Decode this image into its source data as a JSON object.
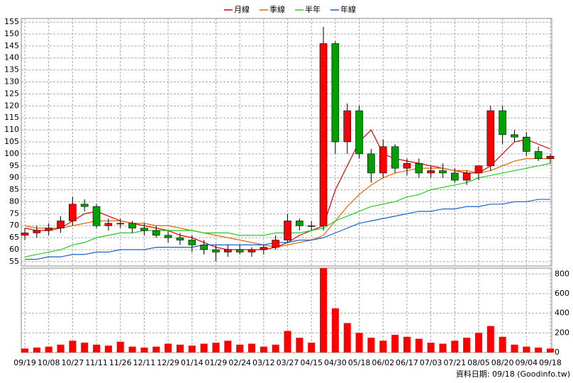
{
  "chart_data": [
    {
      "type": "candlestick",
      "categories": [
        "09/19",
        null,
        "10/08",
        null,
        "10/27",
        null,
        "11/11",
        null,
        "11/26",
        null,
        "12/11",
        null,
        "12/29",
        null,
        "01/14",
        null,
        "01/29",
        null,
        "02/24",
        null,
        "03/12",
        null,
        "03/27",
        null,
        "04/15",
        null,
        "04/30",
        null,
        "05/18",
        null,
        "06/02",
        null,
        "06/17",
        null,
        "07/03",
        null,
        "07/21",
        null,
        "08/05",
        null,
        "08/20",
        null,
        "09/04",
        null,
        "09/18"
      ],
      "open": [
        66,
        67,
        68,
        69,
        72,
        79,
        78,
        70,
        71,
        71,
        69,
        68,
        66,
        65,
        64,
        62,
        60,
        59,
        60,
        59,
        60,
        61,
        64,
        72,
        70,
        70,
        146,
        105,
        118,
        100,
        92,
        103,
        94,
        96,
        92,
        93,
        92,
        89,
        92,
        95,
        118,
        108,
        107,
        101,
        98
      ],
      "high": [
        69,
        70,
        71,
        74,
        82,
        81,
        79,
        73,
        73,
        72,
        71,
        70,
        68,
        67,
        66,
        64,
        62,
        62,
        62,
        61,
        62,
        66,
        75,
        73,
        72,
        153,
        147,
        121,
        120,
        102,
        106,
        104,
        98,
        98,
        95,
        96,
        94,
        93,
        94,
        120,
        120,
        110,
        109,
        103,
        100
      ],
      "low": [
        64,
        65,
        66,
        67,
        70,
        76,
        69,
        68,
        69,
        67,
        66,
        65,
        63,
        62,
        59,
        58,
        55,
        57,
        58,
        57,
        58,
        60,
        63,
        68,
        68,
        68,
        100,
        100,
        98,
        88,
        90,
        92,
        91,
        90,
        90,
        90,
        88,
        87,
        89,
        93,
        104,
        105,
        99,
        97,
        96
      ],
      "close": [
        67,
        68,
        69,
        72,
        79,
        78,
        70,
        71,
        71,
        69,
        68,
        66,
        65,
        64,
        62,
        60,
        59,
        60,
        59,
        60,
        61,
        64,
        72,
        70,
        70,
        146,
        105,
        118,
        100,
        92,
        103,
        94,
        96,
        92,
        93,
        92,
        89,
        92,
        95,
        118,
        108,
        107,
        101,
        98,
        99
      ],
      "series": [
        {
          "name": "月線",
          "color": "#e00000",
          "values": [
            69,
            68,
            68,
            69,
            72,
            75,
            76,
            74,
            72,
            71,
            70,
            69,
            68,
            66,
            65,
            63,
            61,
            60,
            60,
            60,
            60,
            61,
            63,
            66,
            68,
            70,
            85,
            95,
            105,
            110,
            100,
            98,
            97,
            96,
            95,
            94,
            93,
            92,
            92,
            95,
            100,
            105,
            106,
            104,
            102
          ]
        },
        {
          "name": "季線",
          "color": "#e06a00",
          "values": [
            70,
            69,
            69,
            69,
            70,
            71,
            72,
            72,
            72,
            71,
            71,
            70,
            70,
            69,
            68,
            67,
            66,
            65,
            64,
            63,
            62,
            61,
            62,
            63,
            64,
            66,
            72,
            78,
            83,
            87,
            90,
            92,
            93,
            94,
            94,
            94,
            93,
            93,
            92,
            93,
            95,
            97,
            98,
            98,
            98
          ]
        },
        {
          "name": "半年",
          "color": "#22cc22",
          "values": [
            57,
            58,
            59,
            60,
            62,
            63,
            65,
            66,
            67,
            67,
            68,
            68,
            68,
            68,
            68,
            67,
            67,
            67,
            66,
            66,
            66,
            67,
            67,
            67,
            68,
            69,
            72,
            74,
            76,
            78,
            79,
            80,
            82,
            83,
            85,
            86,
            87,
            88,
            90,
            91,
            92,
            93,
            94,
            95,
            96
          ]
        },
        {
          "name": "年線",
          "color": "#1a5fd0",
          "values": [
            56,
            56,
            57,
            57,
            58,
            58,
            59,
            59,
            60,
            60,
            60,
            61,
            61,
            61,
            61,
            62,
            62,
            62,
            62,
            62,
            62,
            63,
            63,
            64,
            64,
            65,
            67,
            69,
            71,
            72,
            73,
            74,
            75,
            76,
            76,
            77,
            77,
            78,
            78,
            79,
            79,
            80,
            80,
            81,
            81
          ]
        }
      ],
      "ylim": [
        53.2,
        156.5
      ],
      "yticks": [
        55,
        60,
        65,
        70,
        75,
        80,
        85,
        90,
        95,
        100,
        105,
        110,
        115,
        120,
        125,
        130,
        135,
        140,
        145,
        150,
        155
      ],
      "grid": true,
      "legend": "top"
    },
    {
      "type": "bar",
      "color": "#ff0000",
      "values": [
        40,
        50,
        60,
        80,
        120,
        100,
        80,
        70,
        110,
        60,
        50,
        60,
        90,
        80,
        70,
        90,
        100,
        120,
        80,
        90,
        60,
        80,
        220,
        150,
        100,
        860,
        450,
        300,
        200,
        150,
        120,
        180,
        160,
        140,
        100,
        90,
        120,
        150,
        200,
        270,
        160,
        80,
        60,
        50,
        40
      ],
      "ylim": [
        0,
        860
      ],
      "yticks": [
        0,
        200,
        400,
        600,
        800
      ],
      "grid": true,
      "note": "資料日期: 09/18 (Goodinfo.tw)"
    }
  ]
}
